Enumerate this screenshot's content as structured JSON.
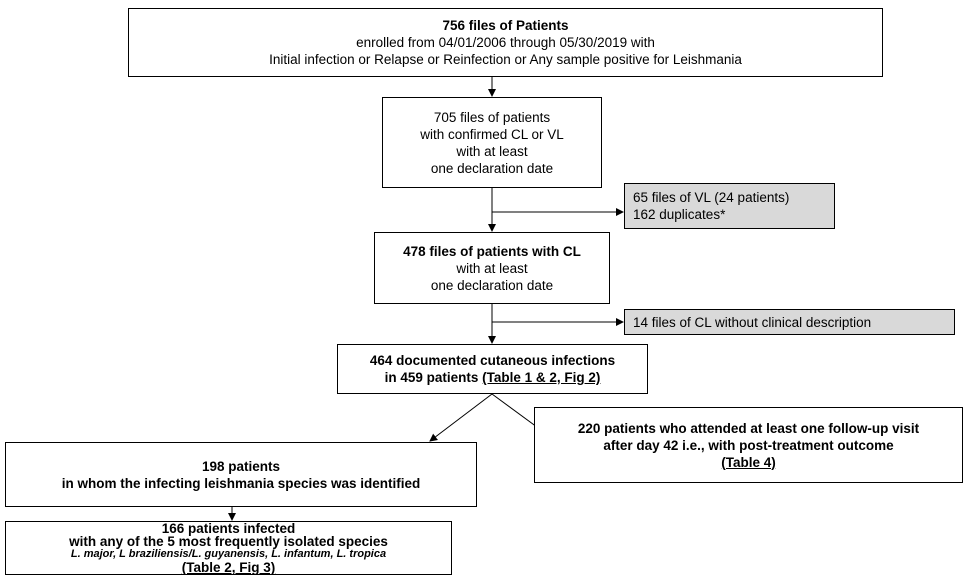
{
  "nodes": [
    {
      "lines": [
        "756 files of Patients",
        "enrolled from 04/01/2006 through 05/30/2019 with",
        "Initial infection or Relapse or Reinfection or Any sample positive for Leishmania"
      ]
    },
    {
      "lines": [
        "705 files of patients",
        "with confirmed CL or VL",
        "with at least",
        "one declaration date"
      ]
    },
    {
      "lines": [
        "65 files of VL (24 patients)",
        "162 duplicates*"
      ]
    },
    {
      "lines": [
        "478 files of patients with CL",
        "with at least",
        "one declaration date"
      ]
    },
    {
      "lines": [
        "14 files of CL without clinical description"
      ]
    },
    {
      "lines": [
        "464 documented cutaneous infections",
        "in 459 patients"
      ],
      "reference": "(Table 1 & 2, Fig 2)"
    },
    {
      "lines": [
        "198 patients",
        "in whom the infecting leishmania species was identified"
      ]
    },
    {
      "lines": [
        "220 patients who attended at least one follow-up visit",
        "after day 42 i.e., with post-treatment outcome"
      ],
      "reference": "(Table 4)"
    },
    {
      "lines": [
        "166 patients infected",
        "with any of the 5 most frequently isolated species"
      ],
      "species": "L. major, L braziliensis/L. guyanensis, L. infantum, L. tropica",
      "reference": "(Table 2, Fig 3)"
    }
  ]
}
